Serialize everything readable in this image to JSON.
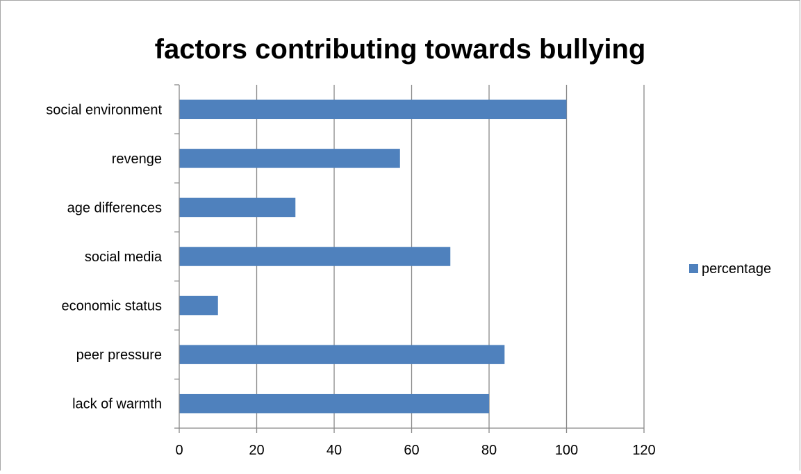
{
  "chart_data": {
    "type": "bar",
    "orientation": "horizontal",
    "title": "factors contributing towards bullying",
    "categories": [
      "lack of warmth",
      "peer pressure",
      "economic status",
      "social media",
      "age differences",
      "revenge",
      "social environment"
    ],
    "series": [
      {
        "name": "percentage",
        "color": "#4F81BD",
        "values": [
          80,
          84,
          10,
          70,
          30,
          57,
          100
        ]
      }
    ],
    "xlim": [
      0,
      120
    ],
    "xticks": [
      "0",
      "20",
      "40",
      "60",
      "80",
      "100",
      "120"
    ],
    "grid": true,
    "legend": "right"
  }
}
